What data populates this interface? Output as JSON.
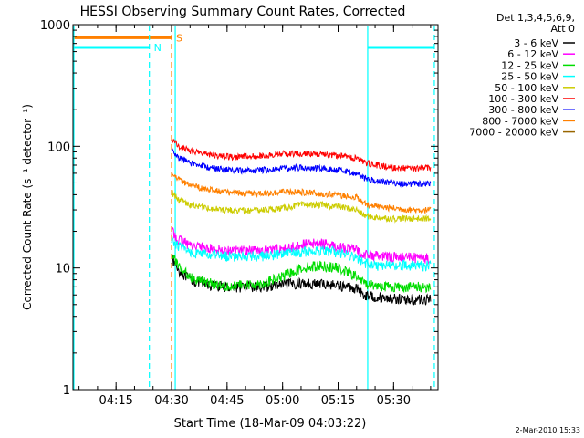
{
  "chart_data": {
    "type": "line",
    "title": "HESSI Observing Summary Count Rates, Corrected",
    "xlabel": "Start Time (18-Mar-09 04:03:22)",
    "ylabel": "Corrected Count Rate (s⁻¹ detector⁻¹)",
    "yscale": "log",
    "ylim": [
      1,
      1000
    ],
    "xlim": [
      "04:03:22",
      "05:42:00"
    ],
    "x_ticks": [
      "04:15",
      "04:30",
      "04:45",
      "05:00",
      "05:15",
      "05:30"
    ],
    "y_ticks": [
      "1",
      "10",
      "100",
      "1000"
    ],
    "legend_header": [
      "Det 1,3,4,5,6,9,",
      "Att 0"
    ],
    "legend_position": "right",
    "timestamp": "2-Mar-2010 15:33",
    "grid": false,
    "series": [
      {
        "name": "3 - 6 keV",
        "color": "#000000",
        "x": [
          "04:30",
          "04:32",
          "04:35",
          "04:40",
          "04:45",
          "04:50",
          "04:55",
          "05:00",
          "05:05",
          "05:10",
          "05:15",
          "05:20",
          "05:22",
          "05:25",
          "05:30",
          "05:35",
          "05:40"
        ],
        "y": [
          12,
          9.5,
          8,
          7.2,
          7,
          7,
          7,
          7.3,
          7.5,
          7.4,
          7.2,
          6.8,
          6,
          5.8,
          5.6,
          5.5,
          5.5
        ]
      },
      {
        "name": "6 - 12 keV",
        "color": "#ff00ff",
        "x": [
          "04:30",
          "04:32",
          "04:35",
          "04:40",
          "04:45",
          "04:50",
          "04:55",
          "05:00",
          "05:05",
          "05:10",
          "05:15",
          "05:20",
          "05:22",
          "05:25",
          "05:30",
          "05:35",
          "05:40"
        ],
        "y": [
          20,
          17,
          15.5,
          14.5,
          14,
          14,
          14,
          14.3,
          15.5,
          16,
          15,
          14,
          13,
          12.5,
          12.3,
          12.2,
          12
        ]
      },
      {
        "name": "12 - 25 keV",
        "color": "#00dd00",
        "x": [
          "04:30",
          "04:32",
          "04:35",
          "04:40",
          "04:45",
          "04:50",
          "04:55",
          "05:00",
          "05:05",
          "05:10",
          "05:15",
          "05:20",
          "05:22",
          "05:25",
          "05:30",
          "05:35",
          "05:40"
        ],
        "y": [
          13,
          10,
          8.5,
          7.5,
          7.2,
          7.2,
          7.5,
          8.5,
          10,
          10.5,
          10,
          8.5,
          7.5,
          7.2,
          7,
          7,
          7
        ]
      },
      {
        "name": "25 - 50 keV",
        "color": "#00ffff",
        "x": [
          "04:30",
          "04:32",
          "04:35",
          "04:40",
          "04:45",
          "04:50",
          "04:55",
          "05:00",
          "05:05",
          "05:10",
          "05:15",
          "05:20",
          "05:22",
          "05:25",
          "05:30",
          "05:35",
          "05:40"
        ],
        "y": [
          17,
          15,
          13.5,
          12.8,
          12.5,
          12.5,
          12.5,
          13,
          13.5,
          14,
          13.5,
          12,
          11,
          10.5,
          10.5,
          10.5,
          10.5
        ]
      },
      {
        "name": "50 - 100 keV",
        "color": "#cccc00",
        "x": [
          "04:30",
          "04:32",
          "04:35",
          "04:40",
          "04:45",
          "04:50",
          "04:55",
          "05:00",
          "05:05",
          "05:10",
          "05:15",
          "05:20",
          "05:22",
          "05:25",
          "05:30",
          "05:35",
          "05:40"
        ],
        "y": [
          42,
          36,
          33,
          31,
          30,
          29.5,
          30,
          31,
          33,
          33,
          32,
          30,
          27,
          26,
          25.5,
          25.5,
          25.5
        ]
      },
      {
        "name": "100 - 300 keV",
        "color": "#ff0000",
        "x": [
          "04:30",
          "04:32",
          "04:35",
          "04:40",
          "04:45",
          "04:50",
          "04:55",
          "05:00",
          "05:05",
          "05:10",
          "05:15",
          "05:20",
          "05:22",
          "05:25",
          "05:30",
          "05:35",
          "05:40"
        ],
        "y": [
          115,
          100,
          92,
          86,
          82,
          82,
          84,
          87,
          87,
          86,
          84,
          80,
          74,
          70,
          67,
          66,
          66
        ]
      },
      {
        "name": "300 - 800 keV",
        "color": "#0000ff",
        "x": [
          "04:30",
          "04:32",
          "04:35",
          "04:40",
          "04:45",
          "04:50",
          "04:55",
          "05:00",
          "05:05",
          "05:10",
          "05:15",
          "05:20",
          "05:22",
          "05:25",
          "05:30",
          "05:35",
          "05:40"
        ],
        "y": [
          92,
          80,
          73,
          67,
          64,
          63,
          64,
          66,
          67,
          66,
          64,
          60,
          55,
          52,
          50,
          49,
          49
        ]
      },
      {
        "name": "800 - 7000 keV",
        "color": "#ff8000",
        "x": [
          "04:30",
          "04:32",
          "04:35",
          "04:40",
          "04:45",
          "04:50",
          "04:55",
          "05:00",
          "05:05",
          "05:10",
          "05:15",
          "05:20",
          "05:22",
          "05:25",
          "05:30",
          "05:35",
          "05:40"
        ],
        "y": [
          62,
          53,
          48,
          44,
          42,
          41,
          41,
          42,
          42,
          41,
          40,
          38,
          34,
          32,
          31,
          30,
          30
        ]
      },
      {
        "name": "7000 - 20000 keV",
        "color": "#996600",
        "x": [],
        "y": []
      }
    ],
    "flags": [
      {
        "label": "N",
        "color": "#00ffff",
        "level": 650,
        "intervals": [
          [
            "04:03:22",
            "04:24:00"
          ],
          [
            "05:23:00",
            "05:41:00"
          ]
        ],
        "labeled_edge": "04:24:00"
      },
      {
        "label": "S",
        "color": "#ff8000",
        "level": 780,
        "intervals": [
          [
            "04:03:22",
            "04:30:00"
          ]
        ],
        "labeled_edge": "04:30:00"
      }
    ],
    "vertical_lines": [
      {
        "time": "04:03:22",
        "color": "#00ffff",
        "style": "solid"
      },
      {
        "time": "04:24:00",
        "color": "#00ffff",
        "style": "dashed"
      },
      {
        "time": "04:30:00",
        "color": "#ff8000",
        "style": "dashed"
      },
      {
        "time": "04:31:00",
        "color": "#00ffff",
        "style": "solid"
      },
      {
        "time": "05:23:00",
        "color": "#00ffff",
        "style": "solid"
      },
      {
        "time": "05:41:00",
        "color": "#00ffff",
        "style": "dashed"
      }
    ]
  }
}
